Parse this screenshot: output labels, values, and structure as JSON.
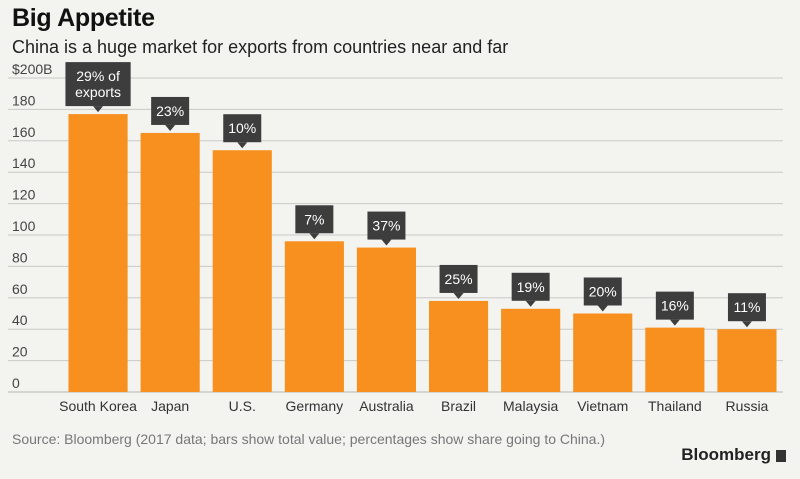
{
  "header": {
    "title": "Big Appetite",
    "subtitle": "China is a huge market for exports from countries near and far"
  },
  "footer": {
    "source": "Source: Bloomberg (2017 data; bars show total value; percentages show share going to China.)",
    "brand": "Bloomberg"
  },
  "colors": {
    "bar": "#f7901e",
    "callout": "#3d3d3d",
    "background": "#f3f3f0",
    "grid": "#c9c9c6"
  },
  "chart_data": {
    "type": "bar",
    "title": "Big Appetite",
    "subtitle": "China is a huge market for exports from countries near and far",
    "categories": [
      "South Korea",
      "Japan",
      "U.S.",
      "Germany",
      "Australia",
      "Brazil",
      "Malaysia",
      "Vietnam",
      "Thailand",
      "Russia"
    ],
    "values": [
      177,
      165,
      154,
      96,
      92,
      58,
      53,
      50,
      41,
      40
    ],
    "annotations": [
      "29% of exports",
      "23%",
      "10%",
      "7%",
      "37%",
      "25%",
      "19%",
      "20%",
      "16%",
      "11%"
    ],
    "ytick_labels": [
      "0",
      "20",
      "40",
      "60",
      "80",
      "100",
      "120",
      "140",
      "160",
      "180",
      "$200B"
    ],
    "ylim": [
      0,
      200
    ],
    "grid": true,
    "xlabel": "",
    "ylabel": ""
  }
}
